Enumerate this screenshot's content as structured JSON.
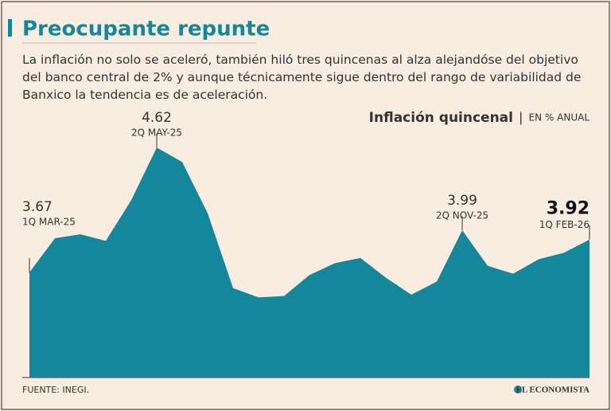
{
  "title": "Preocupante repunte",
  "subtitle": "La inflación no solo se aceleró, también hiló tres quincenas al alza alejandóse del objetivo del banco central de 2% y aunque técnicamente sigue dentro del rango de variabilidad de Banxico la tendencia es de aceleración.",
  "source": "FUENTE: INEGI.",
  "logo": "EL ECONOMISTA",
  "chart_data": {
    "type": "area",
    "title": "Inflación quincenal",
    "unit": "EN % ANUAL",
    "color": "#13879b",
    "categories": [
      "1Q MAR-25",
      null,
      null,
      null,
      null,
      "2Q MAY-25",
      null,
      null,
      null,
      null,
      null,
      null,
      null,
      null,
      null,
      null,
      null,
      "2Q NOV-25",
      null,
      null,
      null,
      null,
      "1Q FEB-26"
    ],
    "values": [
      3.67,
      3.93,
      3.96,
      3.91,
      4.22,
      4.62,
      4.51,
      4.12,
      3.55,
      3.48,
      3.49,
      3.65,
      3.74,
      3.78,
      3.63,
      3.5,
      3.6,
      3.99,
      3.72,
      3.66,
      3.77,
      3.82,
      3.92
    ],
    "ylim": [
      2.87,
      4.9
    ]
  }
}
